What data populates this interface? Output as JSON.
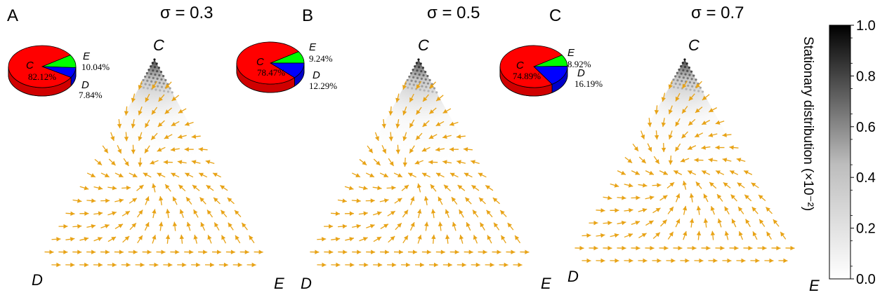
{
  "chart_data": {
    "type": "ternary",
    "panels": [
      {
        "label": "A",
        "title": "σ = 0.3",
        "vertices": {
          "top": "C",
          "left": "D",
          "right": "E"
        },
        "pie": {
          "slices": [
            {
              "name": "C",
              "value": 82.12,
              "label": "82.12%",
              "color": "#ff0000"
            },
            {
              "name": "E",
              "value": 10.04,
              "label": "10.04%",
              "color": "#00ff00"
            },
            {
              "name": "D",
              "value": 7.84,
              "label": "7.84%",
              "color": "#0000ff"
            }
          ]
        }
      },
      {
        "label": "B",
        "title": "σ = 0.5",
        "vertices": {
          "top": "C",
          "left": "D",
          "right": "E"
        },
        "pie": {
          "slices": [
            {
              "name": "C",
              "value": 78.47,
              "label": "78.47%",
              "color": "#ff0000"
            },
            {
              "name": "E",
              "value": 9.24,
              "label": "9.24%",
              "color": "#00ff00"
            },
            {
              "name": "D",
              "value": 12.29,
              "label": "12.29%",
              "color": "#0000ff"
            }
          ]
        }
      },
      {
        "label": "C",
        "title": "σ = 0.7",
        "vertices": {
          "top": "C",
          "left": "D",
          "right": "E"
        },
        "pie": {
          "slices": [
            {
              "name": "C",
              "value": 74.89,
              "label": "74.89%",
              "color": "#ff0000"
            },
            {
              "name": "E",
              "value": 8.92,
              "label": "8.92%",
              "color": "#00ff00"
            },
            {
              "name": "D",
              "value": 16.19,
              "label": "16.19%",
              "color": "#0000ff"
            }
          ]
        }
      }
    ],
    "arrow_color": "#e8a317",
    "colorbar": {
      "label": "Stationary distribution",
      "unit": "(×10⁻²)",
      "range": [
        0.0,
        1.0
      ],
      "ticks": [
        "1.0",
        "0.8",
        "0.6",
        "0.4",
        "0.2",
        "0.0"
      ],
      "colors": [
        "#ffffff",
        "#000000"
      ]
    }
  }
}
